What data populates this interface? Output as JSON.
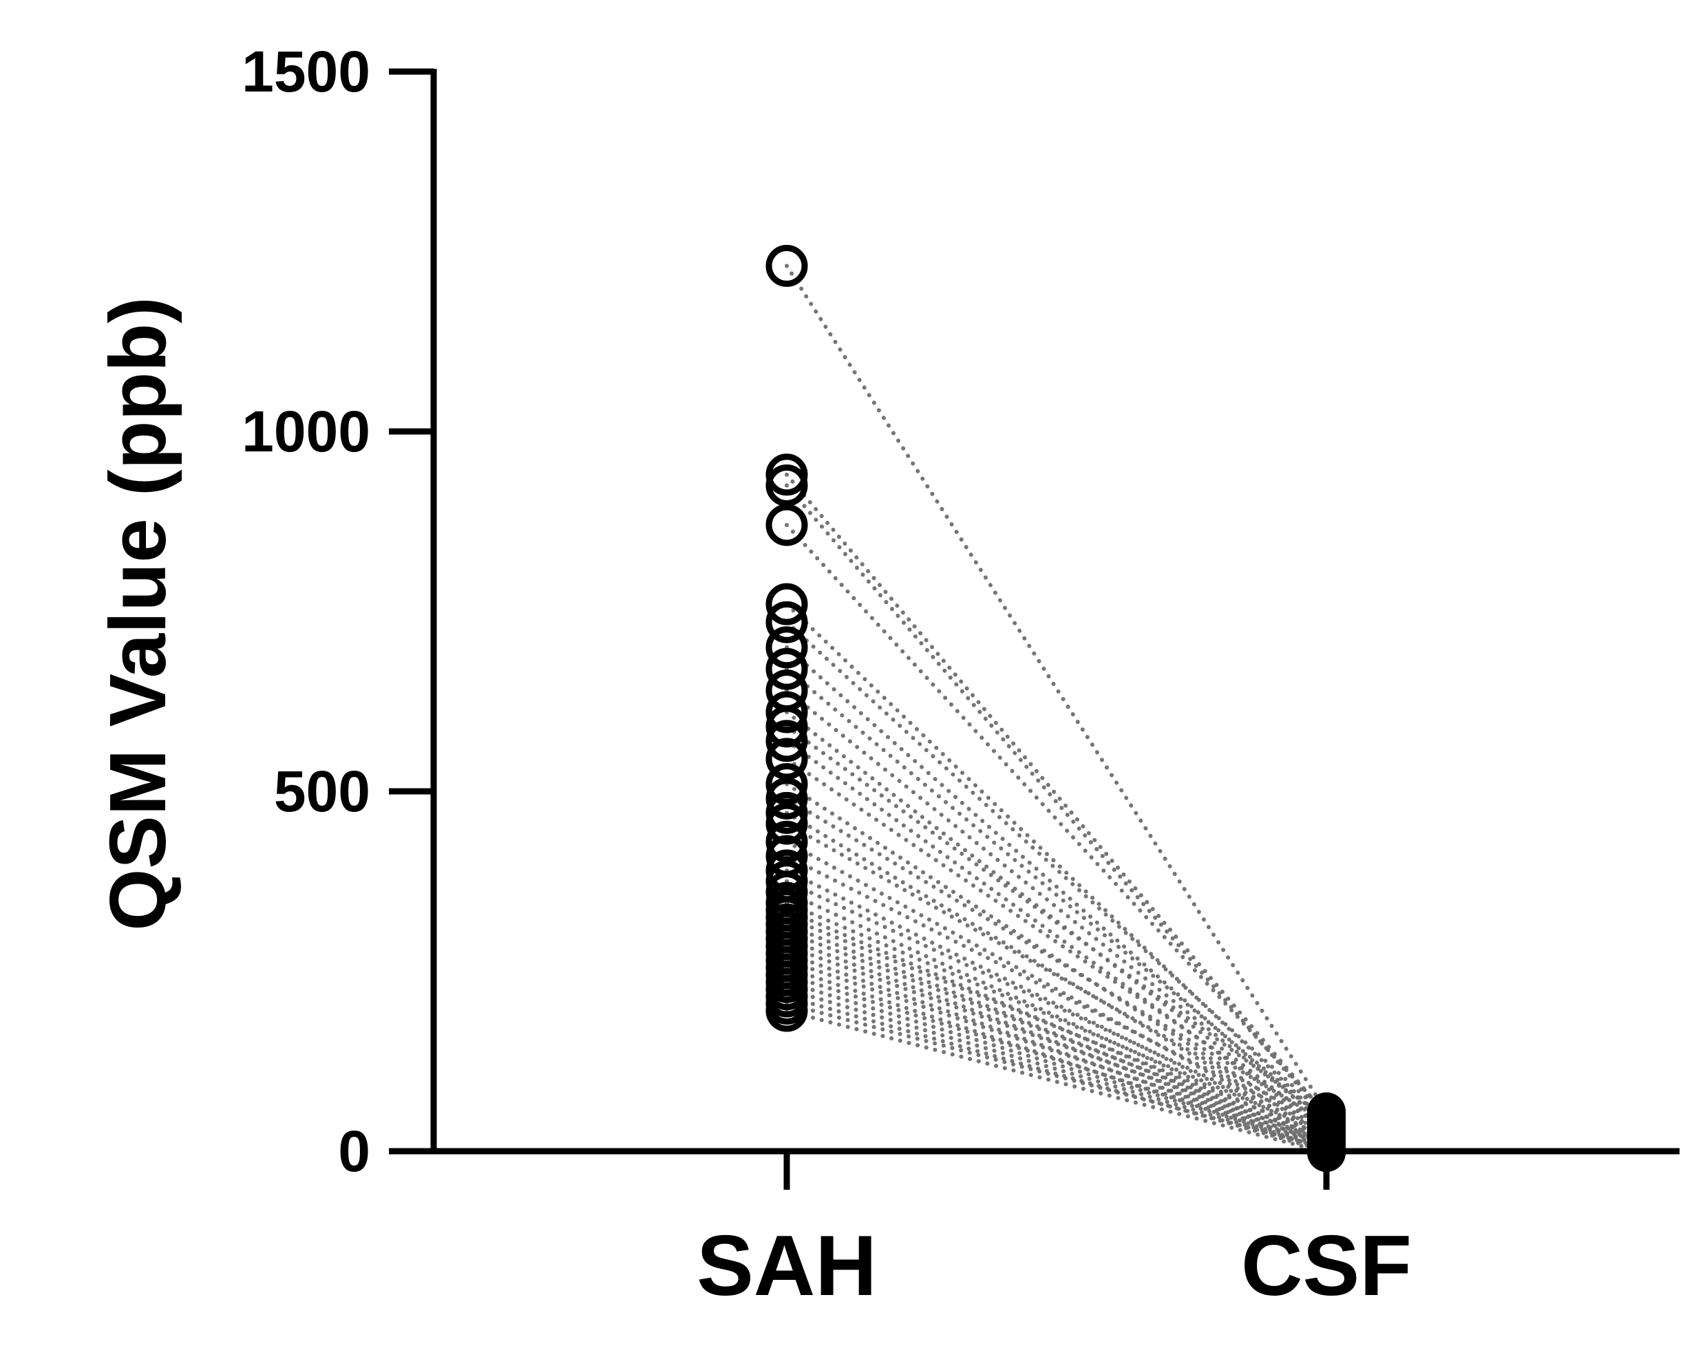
{
  "chart_data": {
    "type": "scatter",
    "subtype": "paired-before-after",
    "title": "",
    "xlabel": "",
    "ylabel": "QSM Value (ppb)",
    "categories": [
      "SAH",
      "CSF"
    ],
    "ylim": [
      0,
      1500
    ],
    "yticks": [
      0,
      500,
      1000,
      1500
    ],
    "grid": false,
    "legend": "none",
    "colors": {
      "axis": "#000000",
      "sah_marker": "#000000",
      "csf_marker": "#000000",
      "connector": "#6e6e6e"
    },
    "markers": {
      "SAH": "open-circle",
      "CSF": "filled-circle"
    },
    "pairs": [
      {
        "SAH": 1230,
        "CSF": 55
      },
      {
        "SAH": 940,
        "CSF": 50
      },
      {
        "SAH": 925,
        "CSF": 45
      },
      {
        "SAH": 870,
        "CSF": 52
      },
      {
        "SAH": 760,
        "CSF": 40
      },
      {
        "SAH": 735,
        "CSF": 48
      },
      {
        "SAH": 700,
        "CSF": 35
      },
      {
        "SAH": 670,
        "CSF": 42
      },
      {
        "SAH": 640,
        "CSF": 38
      },
      {
        "SAH": 610,
        "CSF": 30
      },
      {
        "SAH": 590,
        "CSF": 45
      },
      {
        "SAH": 570,
        "CSF": 28
      },
      {
        "SAH": 545,
        "CSF": 36
      },
      {
        "SAH": 510,
        "CSF": 25
      },
      {
        "SAH": 490,
        "CSF": 40
      },
      {
        "SAH": 470,
        "CSF": 22
      },
      {
        "SAH": 455,
        "CSF": 33
      },
      {
        "SAH": 430,
        "CSF": 20
      },
      {
        "SAH": 410,
        "CSF": 30
      },
      {
        "SAH": 390,
        "CSF": 18
      },
      {
        "SAH": 375,
        "CSF": 26
      },
      {
        "SAH": 360,
        "CSF": 15
      },
      {
        "SAH": 345,
        "CSF": 24
      },
      {
        "SAH": 335,
        "CSF": 12
      },
      {
        "SAH": 325,
        "CSF": 20
      },
      {
        "SAH": 315,
        "CSF": 10
      },
      {
        "SAH": 305,
        "CSF": 16
      },
      {
        "SAH": 295,
        "CSF": 8
      },
      {
        "SAH": 285,
        "CSF": 14
      },
      {
        "SAH": 275,
        "CSF": 5
      },
      {
        "SAH": 265,
        "CSF": 11
      },
      {
        "SAH": 255,
        "CSF": 2
      },
      {
        "SAH": 245,
        "CSF": 9
      },
      {
        "SAH": 235,
        "CSF": 6
      },
      {
        "SAH": 225,
        "CSF": 3
      },
      {
        "SAH": 215,
        "CSF": 0
      },
      {
        "SAH": 205,
        "CSF": 4
      },
      {
        "SAH": 195,
        "CSF": -2
      }
    ]
  }
}
